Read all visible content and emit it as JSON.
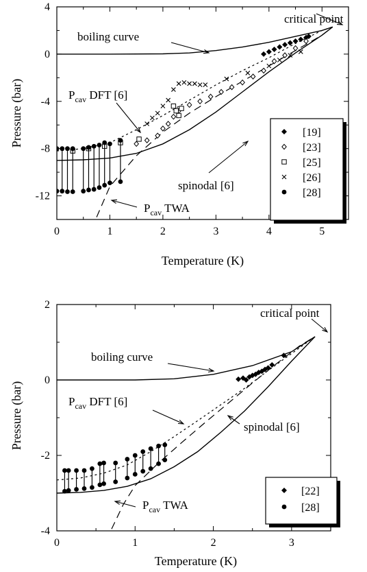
{
  "chart_data": [
    {
      "type": "scatter",
      "xlabel": "Temperature (K)",
      "ylabel": "Pressure (bar)",
      "xlim": [
        0,
        5.5
      ],
      "ylim": [
        -14,
        4
      ],
      "xticks": [
        0,
        1,
        2,
        3,
        4,
        5
      ],
      "yticks": [
        4,
        0,
        -4,
        -8,
        -12
      ],
      "legend": "right",
      "curves": [
        {
          "label": "boiling curve",
          "style": "solid",
          "x": [
            0,
            1,
            2,
            2.5,
            3,
            3.5,
            4,
            4.5,
            5,
            5.2
          ],
          "y": [
            0,
            0,
            0.02,
            0.1,
            0.3,
            0.6,
            1.0,
            1.5,
            2.0,
            2.3
          ]
        },
        {
          "label": "spinodal [6]",
          "style": "solid",
          "x": [
            0,
            0.5,
            1,
            1.5,
            2,
            2.5,
            3,
            3.5,
            4,
            4.5,
            5,
            5.2
          ],
          "y": [
            -9.0,
            -8.95,
            -8.8,
            -8.4,
            -7.6,
            -6.4,
            -4.9,
            -3.2,
            -1.5,
            0.1,
            1.6,
            2.3
          ]
        },
        {
          "label": "P_cav DFT [6]",
          "style": "dotted",
          "x": [
            0,
            0.5,
            1,
            1.5,
            2,
            2.5,
            3,
            3.5,
            4,
            4.5,
            5,
            5.2
          ],
          "y": [
            -8.2,
            -8.0,
            -7.5,
            -6.4,
            -5.2,
            -3.9,
            -2.6,
            -1.4,
            -0.3,
            0.9,
            2.0,
            2.3
          ]
        },
        {
          "label": "P_cav TWA",
          "style": "dashed",
          "x": [
            0.75,
            1,
            1.5,
            2,
            2.5,
            3,
            3.5,
            4,
            4.5,
            5,
            5.2
          ],
          "y": [
            -13.8,
            -11.2,
            -8.6,
            -6.6,
            -5.0,
            -3.6,
            -2.3,
            -1.0,
            0.3,
            1.6,
            2.3
          ]
        }
      ],
      "series": [
        {
          "name": "[19]",
          "marker": "diamond-filled",
          "x": [
            3.9,
            4.0,
            4.1,
            4.2,
            4.3,
            4.4,
            4.5,
            4.6,
            4.7,
            4.75
          ],
          "y": [
            0.0,
            0.2,
            0.4,
            0.6,
            0.8,
            0.95,
            1.1,
            1.25,
            1.4,
            1.5
          ]
        },
        {
          "name": "[23]",
          "marker": "diamond-open",
          "x": [
            1.5,
            1.7,
            1.9,
            2.0,
            2.1,
            2.2,
            2.3,
            2.5,
            2.7,
            2.9,
            3.1,
            3.3,
            3.5,
            3.7,
            3.9,
            4.1,
            4.3,
            4.5,
            4.7
          ],
          "y": [
            -7.6,
            -7.3,
            -6.9,
            -6.3,
            -5.9,
            -5.3,
            -4.8,
            -4.3,
            -4.0,
            -3.6,
            -3.2,
            -2.8,
            -2.4,
            -1.9,
            -1.4,
            -0.6,
            -0.1,
            0.5,
            1.1
          ]
        },
        {
          "name": "[25]",
          "marker": "square-open",
          "x": [
            0.3,
            0.6,
            0.9,
            1.2,
            1.55,
            2.2,
            2.25,
            2.3,
            2.35
          ],
          "y": [
            -8.2,
            -8.0,
            -7.8,
            -7.5,
            -7.2,
            -4.4,
            -4.8,
            -5.2,
            -4.6
          ]
        },
        {
          "name": "[26]",
          "marker": "cross",
          "x": [
            1.7,
            1.8,
            1.9,
            2.0,
            2.1,
            2.2,
            2.3,
            2.4,
            2.5,
            2.6,
            2.7,
            2.8,
            3.2,
            3.6,
            4.0,
            4.2,
            4.4,
            4.6
          ],
          "y": [
            -5.9,
            -5.4,
            -5.0,
            -4.4,
            -3.9,
            -3.0,
            -2.5,
            -2.4,
            -2.5,
            -2.5,
            -2.6,
            -2.6,
            -2.1,
            -1.6,
            -1.0,
            -0.5,
            -0.1,
            0.2
          ]
        },
        {
          "name": "[28]",
          "marker": "circle-filled",
          "pairs": [
            [
              0.0,
              -8.0,
              -11.6
            ],
            [
              0.1,
              -8.0,
              -11.6
            ],
            [
              0.2,
              -8.0,
              -11.65
            ],
            [
              0.3,
              -8.0,
              -11.65
            ],
            [
              0.5,
              -8.0,
              -11.6
            ],
            [
              0.6,
              -7.9,
              -11.5
            ],
            [
              0.7,
              -7.8,
              -11.45
            ],
            [
              0.8,
              -7.7,
              -11.3
            ],
            [
              0.9,
              -7.5,
              -11.1
            ],
            [
              1.0,
              -7.6,
              -10.9
            ],
            [
              1.2,
              -7.3,
              -10.8
            ]
          ]
        }
      ],
      "annotations": [
        {
          "base": "critical point",
          "sub": "",
          "suffix": ""
        },
        {
          "base": "boiling curve",
          "sub": "",
          "suffix": ""
        },
        {
          "base": "P",
          "sub": "cav",
          "suffix": " DFT [6]"
        },
        {
          "base": "spinodal [6]",
          "sub": "",
          "suffix": ""
        },
        {
          "base": "P",
          "sub": "cav",
          "suffix": " TWA"
        }
      ]
    },
    {
      "type": "scatter",
      "xlabel": "Temperature (K)",
      "ylabel": "Pressure (bar)",
      "xlim": [
        0,
        3.5
      ],
      "ylim": [
        -4,
        2
      ],
      "xticks": [
        0,
        1,
        2,
        3
      ],
      "yticks": [
        2,
        0,
        -2,
        -4
      ],
      "legend": "bottom-right",
      "curves": [
        {
          "label": "boiling curve",
          "style": "solid",
          "x": [
            0,
            1,
            1.5,
            2,
            2.5,
            3,
            3.3
          ],
          "y": [
            0,
            0.0,
            0.03,
            0.15,
            0.38,
            0.75,
            1.15
          ]
        },
        {
          "label": "spinodal [6]",
          "style": "solid",
          "x": [
            0,
            0.3,
            0.6,
            0.9,
            1.2,
            1.5,
            1.8,
            2.1,
            2.4,
            2.7,
            3.0,
            3.3
          ],
          "y": [
            -3.0,
            -2.98,
            -2.93,
            -2.82,
            -2.62,
            -2.3,
            -1.9,
            -1.38,
            -0.82,
            -0.18,
            0.5,
            1.15
          ]
        },
        {
          "label": "P_cav DFT [6]",
          "style": "dotted",
          "x": [
            0,
            0.3,
            0.6,
            0.9,
            1.2,
            1.5,
            1.8,
            2.1,
            2.4,
            2.7,
            3.0,
            3.3
          ],
          "y": [
            -2.65,
            -2.6,
            -2.47,
            -2.25,
            -1.9,
            -1.5,
            -1.08,
            -0.65,
            -0.22,
            0.25,
            0.7,
            1.15
          ]
        },
        {
          "label": "P_cav TWA",
          "style": "dashed",
          "x": [
            0.7,
            0.85,
            1.0,
            1.3,
            1.6,
            1.9,
            2.2,
            2.5,
            2.8,
            3.1,
            3.3
          ],
          "y": [
            -3.95,
            -3.3,
            -2.8,
            -2.2,
            -1.65,
            -1.12,
            -0.6,
            -0.08,
            0.42,
            0.9,
            1.15
          ]
        }
      ],
      "series": [
        {
          "name": "[22]",
          "marker": "diamond-filled",
          "x": [
            2.32,
            2.38,
            2.42,
            2.46,
            2.5,
            2.54,
            2.58,
            2.62,
            2.66,
            2.7,
            2.75,
            2.9
          ],
          "y": [
            0.02,
            0.05,
            0.0,
            0.08,
            0.12,
            0.15,
            0.2,
            0.23,
            0.28,
            0.32,
            0.4,
            0.65
          ]
        },
        {
          "name": "[28]",
          "marker": "circle-filled",
          "pairs": [
            [
              0.1,
              -2.4,
              -2.95
            ],
            [
              0.15,
              -2.4,
              -2.93
            ],
            [
              0.25,
              -2.4,
              -2.9
            ],
            [
              0.35,
              -2.4,
              -2.88
            ],
            [
              0.45,
              -2.35,
              -2.85
            ],
            [
              0.55,
              -2.22,
              -2.78
            ],
            [
              0.6,
              -2.2,
              -2.75
            ],
            [
              0.75,
              -2.2,
              -2.7
            ],
            [
              0.9,
              -2.1,
              -2.6
            ],
            [
              1.0,
              -2.0,
              -2.5
            ],
            [
              1.1,
              -1.9,
              -2.42
            ],
            [
              1.2,
              -1.82,
              -2.35
            ],
            [
              1.3,
              -1.75,
              -2.22
            ],
            [
              1.38,
              -1.72,
              -2.12
            ]
          ]
        }
      ],
      "annotations": [
        {
          "base": "critical point",
          "sub": "",
          "suffix": ""
        },
        {
          "base": "boiling curve",
          "sub": "",
          "suffix": ""
        },
        {
          "base": "P",
          "sub": "cav",
          "suffix": " DFT [6]"
        },
        {
          "base": "spinodal [6]",
          "sub": "",
          "suffix": ""
        },
        {
          "base": "P",
          "sub": "cav",
          "suffix": " TWA"
        }
      ]
    }
  ]
}
